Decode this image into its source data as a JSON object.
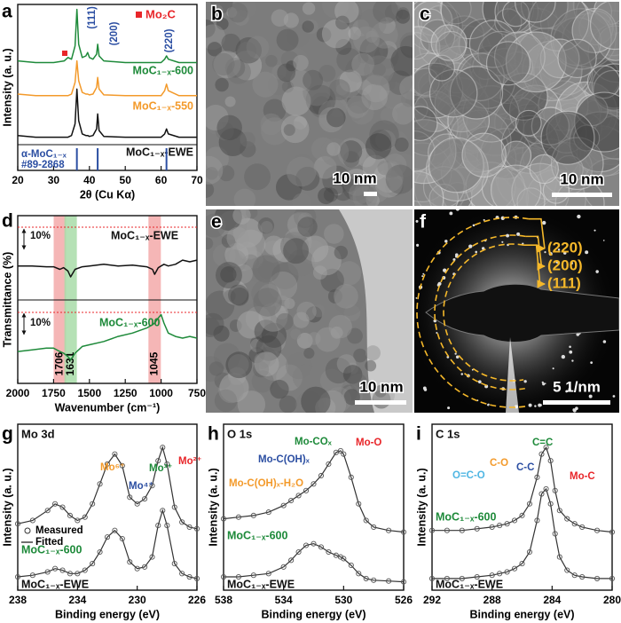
{
  "chart_data": [
    {
      "type": "line",
      "panel": "a",
      "xlabel": "2θ (Cu Kα)",
      "ylabel": "Intensity (a. u.)",
      "xlim": [
        20,
        70
      ],
      "xticks": [
        20,
        30,
        40,
        50,
        60,
        70
      ],
      "ylim": [
        0,
        10
      ],
      "x": [
        20,
        25,
        30,
        33,
        34,
        35,
        36,
        36.5,
        37,
        38,
        39,
        39.5,
        40,
        41,
        42,
        42.3,
        42.7,
        44,
        50,
        55,
        60,
        61,
        61.5,
        62,
        65,
        70
      ],
      "series": [
        {
          "name": "MoC₁₋ₓ-600",
          "color": "#1e8a3a",
          "values": [
            6.6,
            6.5,
            6.5,
            6.6,
            6.8,
            6.7,
            7.5,
            9.7,
            7.6,
            6.8,
            6.9,
            7.1,
            6.8,
            6.7,
            7.0,
            7.6,
            6.9,
            6.6,
            6.5,
            6.5,
            6.5,
            6.7,
            6.9,
            6.7,
            6.5,
            6.5
          ]
        },
        {
          "name": "MoC₁₋ₓ-550",
          "color": "#f39a2b",
          "values": [
            4.6,
            4.5,
            4.5,
            4.5,
            4.5,
            4.6,
            5.3,
            6.6,
            5.4,
            4.7,
            4.6,
            4.6,
            4.55,
            4.6,
            5.0,
            5.6,
            4.9,
            4.55,
            4.5,
            4.5,
            4.5,
            4.8,
            5.2,
            4.8,
            4.5,
            4.5
          ]
        },
        {
          "name": "MoC₁₋ₓ-EWE",
          "color": "#111111",
          "values": [
            2.1,
            2.0,
            2.0,
            2.0,
            2.0,
            2.1,
            2.8,
            4.9,
            3.0,
            2.2,
            2.1,
            2.1,
            2.05,
            2.1,
            2.5,
            3.4,
            2.4,
            2.05,
            2.0,
            2.0,
            2.0,
            2.2,
            2.5,
            2.2,
            2.0,
            2.0
          ]
        }
      ],
      "reference": {
        "lines": [
          "α-MoC₁₋ₓ",
          "#89-2868"
        ],
        "color": "#2b4ea2",
        "positions": [
          36.5,
          42.3,
          61.5
        ]
      },
      "legend_marker": {
        "label": "Mo₂C",
        "color": "#e8262a"
      },
      "annotations": [
        {
          "text": "(111)",
          "color": "#2b4ea2"
        },
        {
          "text": "(200)",
          "color": "#2b4ea2"
        },
        {
          "text": "(220)",
          "color": "#2b4ea2"
        }
      ]
    },
    {
      "type": "line",
      "panel": "d",
      "xlabel": "Wavenumber (cm⁻¹)",
      "ylabel": "Transmittance (%)",
      "xlim": [
        2000,
        750
      ],
      "xticks": [
        2000,
        1750,
        1500,
        1250,
        1000,
        750
      ],
      "ylim": [
        0,
        10
      ],
      "x": [
        2000,
        1900,
        1800,
        1750,
        1706,
        1680,
        1650,
        1631,
        1600,
        1550,
        1500,
        1400,
        1300,
        1200,
        1100,
        1060,
        1045,
        1020,
        1000,
        980,
        950,
        900,
        850,
        800,
        750
      ],
      "series": [
        {
          "name": "MoC₁₋ₓ-EWE",
          "color": "#111111",
          "values": [
            7.0,
            7.0,
            6.95,
            6.95,
            6.8,
            6.9,
            6.7,
            6.35,
            6.8,
            6.95,
            7.0,
            7.1,
            7.0,
            7.05,
            6.95,
            6.8,
            6.5,
            6.9,
            7.0,
            7.1,
            7.0,
            7.1,
            7.35,
            7.25,
            7.35
          ]
        },
        {
          "name": "MoC₁₋ₓ-600",
          "color": "#1e8a3a",
          "values": [
            1.9,
            2.0,
            2.1,
            2.1,
            1.9,
            1.8,
            1.6,
            1.4,
            1.8,
            2.2,
            2.3,
            2.5,
            2.8,
            3.0,
            3.3,
            3.5,
            3.6,
            3.9,
            4.1,
            3.6,
            3.0,
            2.8,
            2.7,
            2.8,
            2.7
          ]
        }
      ],
      "bands": [
        {
          "value": 1706,
          "color": "#f3a9a9"
        },
        {
          "value": 1631,
          "color": "#a8dca8"
        },
        {
          "value": 1045,
          "color": "#f3a9a9"
        }
      ],
      "annotations": [
        {
          "text": "10%",
          "color": "#111111"
        },
        {
          "text": "10%",
          "color": "#111111"
        }
      ]
    },
    {
      "type": "line",
      "panel": "g",
      "xlabel": "Binding energy (eV)",
      "ylabel": "Intensity (a. u.)",
      "xlim": [
        238,
        226
      ],
      "xticks": [
        238,
        234,
        230,
        226
      ],
      "ylim": [
        0,
        10
      ],
      "x": [
        238,
        237,
        236,
        235.5,
        235,
        234.5,
        234,
        233.5,
        233,
        232.5,
        232,
        231.5,
        231,
        230.5,
        230,
        229.5,
        229,
        228.6,
        228.3,
        228,
        227.5,
        227,
        226.5,
        226
      ],
      "series": [
        {
          "name": "MoC₁₋ₓ-600",
          "color": "#1e8a3a",
          "measured": [
            4.0,
            4.2,
            4.8,
            5.2,
            5.0,
            4.5,
            4.2,
            4.4,
            5.2,
            6.4,
            7.6,
            8.2,
            7.5,
            5.6,
            5.2,
            5.5,
            6.3,
            7.8,
            8.6,
            7.6,
            5.0,
            4.1,
            3.8,
            3.7
          ],
          "fitted": [
            4.0,
            4.2,
            4.8,
            5.2,
            5.0,
            4.5,
            4.2,
            4.4,
            5.2,
            6.4,
            7.6,
            8.2,
            7.5,
            5.6,
            5.2,
            5.5,
            6.3,
            7.8,
            8.6,
            7.6,
            5.0,
            4.1,
            3.8,
            3.7
          ]
        },
        {
          "name": "MoC₁₋ₓ-EWE",
          "color": "#111111",
          "measured": [
            0.8,
            0.9,
            1.1,
            1.3,
            1.2,
            1.0,
            1.0,
            1.2,
            1.6,
            2.3,
            3.2,
            3.6,
            3.1,
            1.7,
            1.3,
            1.4,
            2.0,
            3.9,
            4.8,
            3.9,
            1.6,
            1.0,
            0.8,
            0.7
          ],
          "fitted": [
            0.8,
            0.9,
            1.1,
            1.3,
            1.2,
            1.0,
            1.0,
            1.2,
            1.6,
            2.3,
            3.2,
            3.6,
            3.1,
            1.7,
            1.3,
            1.4,
            2.0,
            3.9,
            4.8,
            3.9,
            1.6,
            1.0,
            0.8,
            0.7
          ]
        }
      ],
      "legend": {
        "measured": "Measured",
        "fitted": "Fitted"
      },
      "annotations": [
        {
          "text": "Mo 3d",
          "color": "#111111"
        },
        {
          "text": "Mo⁶⁺",
          "color": "#f39a2b"
        },
        {
          "text": "Mo⁴⁺",
          "color": "#2b4ea2"
        },
        {
          "text": "Mo³⁺",
          "color": "#1e8a3a"
        },
        {
          "text": "Mo²⁺",
          "color": "#e8262a"
        }
      ]
    },
    {
      "type": "line",
      "panel": "h",
      "xlabel": "Binding energy (eV)",
      "ylabel": "Intensity (a. u.)",
      "xlim": [
        538,
        526
      ],
      "xticks": [
        538,
        534,
        530,
        526
      ],
      "ylim": [
        0,
        10
      ],
      "x": [
        538,
        537,
        536,
        535,
        534,
        533.5,
        533,
        532.5,
        532,
        531.5,
        531,
        530.5,
        530.2,
        530,
        529.5,
        529,
        528.5,
        528,
        527,
        526
      ],
      "series": [
        {
          "name": "MoC₁₋ₓ-600",
          "color": "#1e8a3a",
          "measured": [
            4.3,
            4.4,
            4.5,
            4.7,
            5.1,
            5.4,
            5.7,
            6.0,
            6.4,
            6.9,
            7.6,
            8.3,
            8.4,
            8.2,
            6.8,
            5.2,
            4.2,
            3.8,
            3.6,
            3.5
          ],
          "fitted": [
            4.3,
            4.4,
            4.5,
            4.7,
            5.1,
            5.4,
            5.7,
            6.0,
            6.4,
            6.9,
            7.6,
            8.3,
            8.4,
            8.2,
            6.8,
            5.2,
            4.2,
            3.8,
            3.6,
            3.5
          ]
        },
        {
          "name": "MoC₁₋ₓ-EWE",
          "color": "#111111",
          "measured": [
            0.8,
            0.8,
            0.9,
            1.0,
            1.4,
            1.8,
            2.3,
            2.7,
            2.8,
            2.6,
            2.3,
            2.1,
            2.0,
            1.9,
            1.5,
            1.0,
            0.7,
            0.6,
            0.55,
            0.5
          ],
          "fitted": [
            0.8,
            0.8,
            0.9,
            1.0,
            1.4,
            1.8,
            2.3,
            2.7,
            2.8,
            2.6,
            2.3,
            2.1,
            2.0,
            1.9,
            1.5,
            1.0,
            0.7,
            0.6,
            0.55,
            0.5
          ]
        }
      ],
      "annotations": [
        {
          "text": "O 1s",
          "color": "#111111"
        },
        {
          "text": "Mo-C(OH)ₓ-H₂O",
          "color": "#f39a2b"
        },
        {
          "text": "Mo-C(OH)ₓ",
          "color": "#2b4ea2"
        },
        {
          "text": "Mo-COₓ",
          "color": "#1e8a3a"
        },
        {
          "text": "Mo-O",
          "color": "#e8262a"
        }
      ]
    },
    {
      "type": "line",
      "panel": "i",
      "xlabel": "Binding energy (eV)",
      "ylabel": "Intensity (a. u.)",
      "xlim": [
        292,
        280
      ],
      "xticks": [
        292,
        288,
        284,
        280
      ],
      "ylim": [
        0,
        10
      ],
      "x": [
        292,
        291,
        290,
        289,
        288,
        287.5,
        287,
        286.5,
        286,
        285.5,
        285,
        284.7,
        284.4,
        284.1,
        283.8,
        283.5,
        283,
        282.5,
        282,
        281,
        280
      ],
      "series": [
        {
          "name": "MoC₁₋ₓ-600",
          "color": "#1e8a3a",
          "measured": [
            3.6,
            3.6,
            3.6,
            3.7,
            3.8,
            3.9,
            4.0,
            4.2,
            4.5,
            5.2,
            6.8,
            8.2,
            8.6,
            7.8,
            6.0,
            4.8,
            4.3,
            4.0,
            3.8,
            3.6,
            3.5
          ],
          "fitted": [
            3.6,
            3.6,
            3.6,
            3.7,
            3.8,
            3.9,
            4.0,
            4.2,
            4.5,
            5.2,
            6.8,
            8.2,
            8.6,
            7.8,
            6.0,
            4.8,
            4.3,
            4.0,
            3.8,
            3.6,
            3.5
          ]
        },
        {
          "name": "MoC₁₋ₓ-EWE",
          "color": "#111111",
          "measured": [
            0.7,
            0.7,
            0.7,
            0.8,
            0.9,
            1.0,
            1.1,
            1.3,
            1.6,
            2.3,
            4.2,
            5.8,
            6.1,
            5.2,
            3.4,
            2.0,
            1.2,
            0.9,
            0.8,
            0.7,
            0.7
          ],
          "fitted": [
            0.7,
            0.7,
            0.7,
            0.8,
            0.9,
            1.0,
            1.1,
            1.3,
            1.6,
            2.3,
            4.2,
            5.8,
            6.1,
            5.2,
            3.4,
            2.0,
            1.2,
            0.9,
            0.8,
            0.7,
            0.7
          ]
        }
      ],
      "annotations": [
        {
          "text": "C 1s",
          "color": "#111111"
        },
        {
          "text": "O=C-O",
          "color": "#4fb6e3"
        },
        {
          "text": "C-O",
          "color": "#f39a2b"
        },
        {
          "text": "C-C",
          "color": "#2b4ea2"
        },
        {
          "text": "C=C",
          "color": "#1e8a3a"
        },
        {
          "text": "Mo-C",
          "color": "#e8262a"
        }
      ]
    }
  ],
  "images": [
    {
      "panel": "b",
      "scale_bar": "10 nm"
    },
    {
      "panel": "c",
      "scale_bar": "10 nm"
    },
    {
      "panel": "e",
      "scale_bar": "10 nm"
    },
    {
      "panel": "f",
      "scale_bar": "5 1/nm",
      "rings": [
        "(220)",
        "(200)",
        "(111)"
      ]
    }
  ]
}
